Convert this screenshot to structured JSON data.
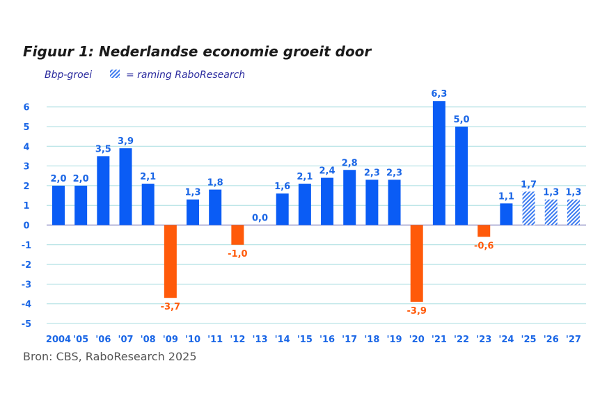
{
  "chart_data": {
    "type": "bar",
    "title": "Figuur 1: Nederlandse economie groeit door",
    "subtitle": "Bbp-groei",
    "legend": {
      "forecast_label": "= raming RaboResearch",
      "forecast_pattern": "hatched"
    },
    "categories": [
      "2004",
      "'05",
      "'06",
      "'07",
      "'08",
      "'09",
      "'10",
      "'11",
      "'12",
      "'13",
      "'14",
      "'15",
      "'16",
      "'17",
      "'18",
      "'19",
      "'20",
      "'21",
      "'22",
      "'23",
      "'24",
      "'25",
      "'26",
      "'27"
    ],
    "values": [
      2.0,
      2.0,
      3.5,
      3.9,
      2.1,
      -3.7,
      1.3,
      1.8,
      -1.0,
      0.0,
      1.6,
      2.1,
      2.4,
      2.8,
      2.3,
      2.3,
      -3.9,
      6.3,
      5.0,
      -0.6,
      1.1,
      1.7,
      1.3,
      1.3
    ],
    "data_labels": [
      "2,0",
      "2,0",
      "3,5",
      "3,9",
      "2,1",
      "-3,7",
      "1,3",
      "1,8",
      "-1,0",
      "0,0",
      "1,6",
      "2,1",
      "2,4",
      "2,8",
      "2,3",
      "2,3",
      "-3,9",
      "6,3",
      "5,0",
      "-0,6",
      "1,1",
      "1,7",
      "1,3",
      "1,3"
    ],
    "forecast": [
      false,
      false,
      false,
      false,
      false,
      false,
      false,
      false,
      false,
      false,
      false,
      false,
      false,
      false,
      false,
      false,
      false,
      false,
      false,
      false,
      false,
      true,
      true,
      true
    ],
    "ylim": [
      -5,
      6
    ],
    "yticks": [
      "-5",
      "-4",
      "-3",
      "-2",
      "-1",
      "0",
      "1",
      "2",
      "3",
      "4",
      "5",
      "6"
    ],
    "grid": true,
    "xlabel": "",
    "ylabel": "",
    "source": "Bron: CBS, RaboResearch 2025",
    "colors": {
      "positive": "#0a5cf5",
      "negative": "#ff5a0a",
      "grid": "#a8dde0",
      "zero_line": "#7b7bbb",
      "tick_text": "#1a66e6"
    }
  }
}
